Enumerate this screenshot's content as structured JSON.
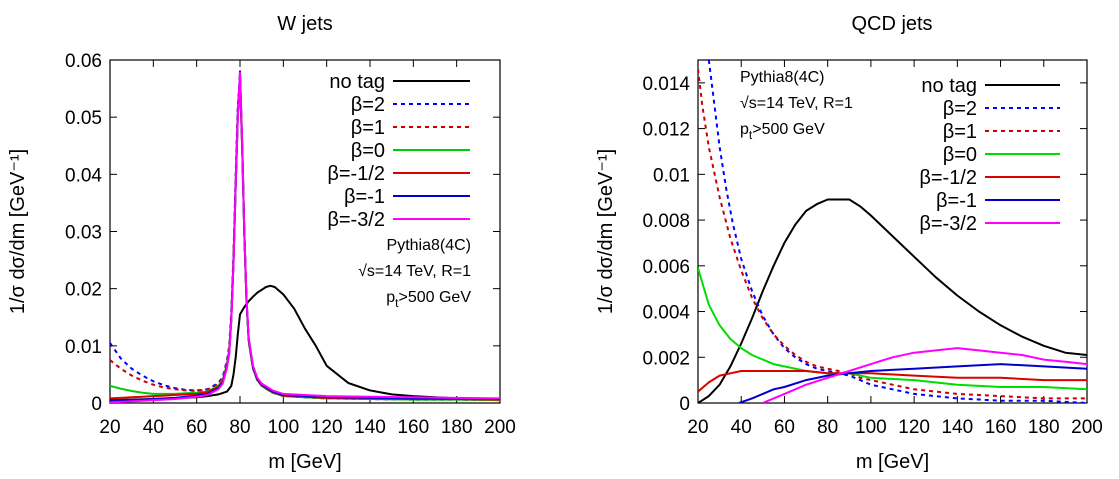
{
  "chart_data": [
    {
      "type": "line",
      "title": "W jets",
      "xlabel": "m [GeV]",
      "ylabel": "1/σ dσ/dm [GeV⁻¹]",
      "xlim": [
        20,
        200
      ],
      "ylim": [
        0,
        0.06
      ],
      "xticks": [
        20,
        40,
        60,
        80,
        100,
        120,
        140,
        160,
        180,
        200
      ],
      "yticks": [
        0,
        0.01,
        0.02,
        0.03,
        0.04,
        0.05,
        0.06
      ],
      "ytick_labels": [
        "0",
        "0.01",
        "0.02",
        "0.03",
        "0.04",
        "0.05",
        "0.06"
      ],
      "grid": false,
      "legend_position": "top-right",
      "annotation": [
        "Pythia8(4C)",
        "√s=14 TeV, R=1",
        "pt>500 GeV"
      ],
      "series": [
        {
          "name": "no tag",
          "color": "#000000",
          "dash": "solid",
          "x": [
            20,
            30,
            40,
            50,
            60,
            65,
            70,
            74,
            76,
            77,
            78,
            79,
            80,
            82,
            84,
            86,
            88,
            90,
            92,
            94,
            96,
            100,
            105,
            110,
            115,
            120,
            130,
            140,
            150,
            160,
            170,
            180,
            190,
            200
          ],
          "y": [
            0.0005,
            0.0006,
            0.0007,
            0.0008,
            0.001,
            0.0012,
            0.0015,
            0.002,
            0.003,
            0.005,
            0.008,
            0.012,
            0.0155,
            0.0168,
            0.0178,
            0.0186,
            0.0193,
            0.0198,
            0.0203,
            0.0205,
            0.0203,
            0.019,
            0.0165,
            0.013,
            0.01,
            0.0065,
            0.0035,
            0.0022,
            0.0015,
            0.0012,
            0.001,
            0.0008,
            0.0007,
            0.0006
          ]
        },
        {
          "name": "β=2",
          "color": "#0000ff",
          "dash": "dotted",
          "x": [
            20,
            25,
            30,
            35,
            40,
            45,
            50,
            55,
            60,
            65,
            70,
            72,
            74,
            75,
            76,
            77,
            78,
            79,
            80,
            81,
            82,
            83,
            84,
            86,
            88,
            90,
            95,
            100,
            120,
            140,
            160,
            180,
            200
          ],
          "y": [
            0.0105,
            0.0078,
            0.006,
            0.0048,
            0.0038,
            0.0031,
            0.0026,
            0.0023,
            0.0022,
            0.0024,
            0.0035,
            0.0045,
            0.0075,
            0.01,
            0.016,
            0.026,
            0.04,
            0.052,
            0.057,
            0.045,
            0.03,
            0.018,
            0.011,
            0.006,
            0.004,
            0.003,
            0.0018,
            0.0012,
            0.0008,
            0.0007,
            0.0006,
            0.0006,
            0.0005
          ]
        },
        {
          "name": "β=1",
          "color": "#cc0000",
          "dash": "dotted",
          "x": [
            20,
            25,
            30,
            35,
            40,
            45,
            50,
            55,
            60,
            65,
            70,
            72,
            74,
            75,
            76,
            77,
            78,
            79,
            80,
            81,
            82,
            83,
            84,
            86,
            88,
            90,
            95,
            100,
            120,
            140,
            160,
            180,
            200
          ],
          "y": [
            0.0075,
            0.006,
            0.0048,
            0.0039,
            0.0032,
            0.0027,
            0.0024,
            0.0022,
            0.0021,
            0.0023,
            0.0033,
            0.0043,
            0.0072,
            0.0097,
            0.0155,
            0.0255,
            0.039,
            0.051,
            0.0565,
            0.0445,
            0.0295,
            0.0178,
            0.0108,
            0.006,
            0.004,
            0.003,
            0.0018,
            0.0012,
            0.0008,
            0.0007,
            0.0006,
            0.0006,
            0.0005
          ]
        },
        {
          "name": "β=0",
          "color": "#00cc00",
          "dash": "solid",
          "x": [
            20,
            25,
            30,
            35,
            40,
            45,
            50,
            55,
            60,
            65,
            70,
            72,
            74,
            75,
            76,
            77,
            78,
            79,
            80,
            81,
            82,
            83,
            84,
            86,
            88,
            90,
            95,
            100,
            120,
            140,
            160,
            180,
            200
          ],
          "y": [
            0.003,
            0.0025,
            0.0021,
            0.0018,
            0.0016,
            0.0016,
            0.0016,
            0.0017,
            0.0018,
            0.002,
            0.003,
            0.004,
            0.0068,
            0.0093,
            0.015,
            0.025,
            0.0385,
            0.0505,
            0.0565,
            0.0445,
            0.0295,
            0.0178,
            0.0108,
            0.006,
            0.004,
            0.003,
            0.0018,
            0.0012,
            0.0008,
            0.0007,
            0.0006,
            0.0006,
            0.0005
          ]
        },
        {
          "name": "β=-1/2",
          "color": "#dd0000",
          "dash": "solid",
          "x": [
            20,
            25,
            30,
            35,
            40,
            45,
            50,
            55,
            60,
            65,
            70,
            72,
            74,
            75,
            76,
            77,
            78,
            79,
            80,
            81,
            82,
            83,
            84,
            86,
            88,
            90,
            95,
            100,
            120,
            140,
            160,
            180,
            200
          ],
          "y": [
            0.0008,
            0.0009,
            0.001,
            0.0011,
            0.0012,
            0.0013,
            0.0014,
            0.0015,
            0.0016,
            0.0019,
            0.0028,
            0.0038,
            0.0066,
            0.009,
            0.0148,
            0.0248,
            0.0383,
            0.0503,
            0.0568,
            0.0448,
            0.0298,
            0.018,
            0.011,
            0.0062,
            0.0041,
            0.0031,
            0.0019,
            0.0013,
            0.0009,
            0.0008,
            0.0007,
            0.0007,
            0.0006
          ]
        },
        {
          "name": "β=-1",
          "color": "#0000cc",
          "dash": "solid",
          "x": [
            20,
            25,
            30,
            35,
            40,
            45,
            50,
            55,
            60,
            65,
            70,
            72,
            74,
            75,
            76,
            77,
            78,
            79,
            80,
            81,
            82,
            83,
            84,
            86,
            88,
            90,
            95,
            100,
            120,
            140,
            160,
            180,
            200
          ],
          "y": [
            0.0003,
            0.0004,
            0.0005,
            0.0006,
            0.0007,
            0.0008,
            0.0009,
            0.0011,
            0.0013,
            0.0016,
            0.0026,
            0.0036,
            0.0064,
            0.0088,
            0.0146,
            0.0246,
            0.0382,
            0.0502,
            0.058,
            0.0452,
            0.03,
            0.0182,
            0.0112,
            0.0063,
            0.0042,
            0.0032,
            0.002,
            0.0014,
            0.001,
            0.0009,
            0.0008,
            0.0008,
            0.0007
          ]
        },
        {
          "name": "β=-3/2",
          "color": "#ff00ff",
          "dash": "solid",
          "x": [
            20,
            25,
            30,
            35,
            40,
            45,
            50,
            55,
            60,
            65,
            70,
            72,
            74,
            75,
            76,
            77,
            78,
            79,
            80,
            81,
            82,
            83,
            84,
            86,
            88,
            90,
            95,
            100,
            120,
            140,
            160,
            180,
            200
          ],
          "y": [
            0.0001,
            0.0002,
            0.0003,
            0.0004,
            0.0005,
            0.0006,
            0.0007,
            0.0009,
            0.0011,
            0.0014,
            0.0024,
            0.0034,
            0.0062,
            0.0086,
            0.0144,
            0.0244,
            0.038,
            0.05,
            0.0578,
            0.0455,
            0.0302,
            0.0184,
            0.0114,
            0.0065,
            0.0044,
            0.0034,
            0.0022,
            0.0016,
            0.0012,
            0.0011,
            0.001,
            0.0009,
            0.0008
          ]
        }
      ]
    },
    {
      "type": "line",
      "title": "QCD jets",
      "xlabel": "m [GeV]",
      "ylabel": "1/σ dσ/dm [GeV⁻¹]",
      "xlim": [
        20,
        200
      ],
      "ylim": [
        0,
        0.015
      ],
      "xticks": [
        20,
        40,
        60,
        80,
        100,
        120,
        140,
        160,
        180,
        200
      ],
      "yticks": [
        0,
        0.002,
        0.004,
        0.006,
        0.008,
        0.01,
        0.012,
        0.014
      ],
      "ytick_labels": [
        "0",
        "0.002",
        "0.004",
        "0.006",
        "0.008",
        "0.01",
        "0.012",
        "0.014"
      ],
      "grid": false,
      "legend_position": "top-right",
      "annotation": [
        "Pythia8(4C)",
        "√s=14 TeV, R=1",
        "pt>500 GeV"
      ],
      "series": [
        {
          "name": "no tag",
          "color": "#000000",
          "dash": "solid",
          "x": [
            20,
            25,
            30,
            35,
            40,
            45,
            50,
            55,
            60,
            65,
            70,
            75,
            80,
            85,
            90,
            95,
            100,
            110,
            120,
            130,
            140,
            150,
            160,
            170,
            180,
            190,
            200
          ],
          "y": [
            0,
            0.0003,
            0.0008,
            0.0016,
            0.0026,
            0.0037,
            0.0049,
            0.006,
            0.007,
            0.0078,
            0.0084,
            0.0087,
            0.0089,
            0.0089,
            0.0089,
            0.0086,
            0.0082,
            0.0073,
            0.0064,
            0.0055,
            0.0047,
            0.004,
            0.0034,
            0.0029,
            0.0025,
            0.0022,
            0.0021
          ]
        },
        {
          "name": "β=2",
          "color": "#0000ff",
          "dash": "dotted",
          "x": [
            25,
            27,
            30,
            33,
            36,
            40,
            45,
            50,
            55,
            60,
            65,
            70,
            75,
            80,
            85,
            90,
            95,
            100,
            110,
            120,
            140,
            160,
            180,
            200
          ],
          "y": [
            0.015,
            0.0135,
            0.0112,
            0.0094,
            0.0079,
            0.0063,
            0.0049,
            0.0038,
            0.003,
            0.0024,
            0.002,
            0.0017,
            0.0015,
            0.0014,
            0.0013,
            0.0012,
            0.001,
            0.0008,
            0.0006,
            0.0004,
            0.0002,
            0.0001,
            0.0001,
            0
          ]
        },
        {
          "name": "β=1",
          "color": "#cc0000",
          "dash": "dotted",
          "x": [
            20,
            22,
            25,
            30,
            35,
            40,
            45,
            50,
            55,
            60,
            65,
            70,
            75,
            80,
            85,
            90,
            95,
            100,
            110,
            120,
            140,
            160,
            180,
            200
          ],
          "y": [
            0.0146,
            0.013,
            0.0112,
            0.009,
            0.0072,
            0.0058,
            0.0046,
            0.0037,
            0.003,
            0.0025,
            0.0021,
            0.0018,
            0.0016,
            0.0015,
            0.0014,
            0.0013,
            0.0011,
            0.001,
            0.0008,
            0.0006,
            0.0004,
            0.0003,
            0.0002,
            0.0002
          ]
        },
        {
          "name": "β=0",
          "color": "#00dd00",
          "dash": "solid",
          "x": [
            20,
            25,
            30,
            35,
            40,
            45,
            50,
            55,
            60,
            70,
            80,
            90,
            100,
            120,
            140,
            160,
            180,
            200
          ],
          "y": [
            0.0059,
            0.0043,
            0.0034,
            0.0028,
            0.0024,
            0.0021,
            0.0019,
            0.0017,
            0.0016,
            0.0014,
            0.0013,
            0.0013,
            0.0011,
            0.001,
            0.0008,
            0.0007,
            0.0007,
            0.0006
          ]
        },
        {
          "name": "β=-1/2",
          "color": "#dd0000",
          "dash": "solid",
          "x": [
            20,
            25,
            30,
            35,
            40,
            50,
            60,
            70,
            80,
            90,
            100,
            120,
            140,
            160,
            180,
            200
          ],
          "y": [
            0.0005,
            0.0009,
            0.0012,
            0.0013,
            0.0014,
            0.0014,
            0.0014,
            0.0014,
            0.0013,
            0.0013,
            0.0013,
            0.0012,
            0.0011,
            0.0011,
            0.001,
            0.001
          ]
        },
        {
          "name": "β=-1",
          "color": "#0000cc",
          "dash": "solid",
          "x": [
            39,
            45,
            50,
            55,
            60,
            70,
            80,
            90,
            100,
            120,
            140,
            160,
            180,
            200
          ],
          "y": [
            0,
            0.0002,
            0.0004,
            0.0006,
            0.0007,
            0.001,
            0.0012,
            0.0013,
            0.0014,
            0.0015,
            0.0016,
            0.0017,
            0.0016,
            0.0015
          ]
        },
        {
          "name": "β=-3/2",
          "color": "#ff00ff",
          "dash": "solid",
          "x": [
            50,
            55,
            60,
            65,
            70,
            80,
            90,
            100,
            110,
            120,
            130,
            140,
            150,
            160,
            170,
            180,
            190,
            200
          ],
          "y": [
            0,
            0.0002,
            0.0004,
            0.0006,
            0.0008,
            0.0011,
            0.0014,
            0.0017,
            0.002,
            0.0022,
            0.0023,
            0.0024,
            0.0023,
            0.0022,
            0.0021,
            0.0019,
            0.0018,
            0.0017
          ]
        }
      ]
    }
  ]
}
